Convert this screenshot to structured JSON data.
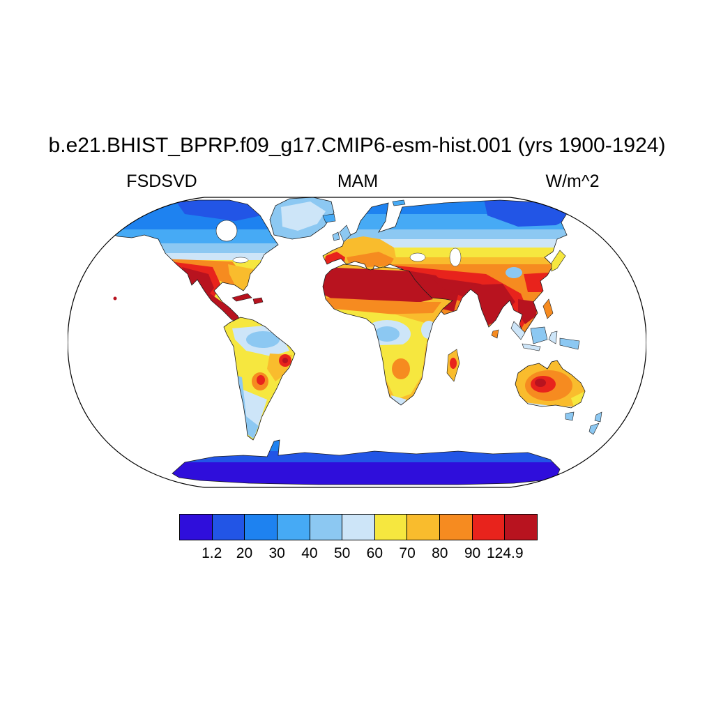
{
  "chart_data": {
    "type": "heatmap",
    "title": "b.e21.BHIST_BPRP.f09_g17.CMIP6-esm-hist.001 (yrs 1900-1924)",
    "variable": "FSDSVD",
    "season": "MAM",
    "units": "W/m^2",
    "projection": "Robinson global map with coastlines",
    "value_min": 1.2,
    "value_max": 124.9,
    "colorbar": {
      "levels": [
        1.2,
        20,
        30,
        40,
        50,
        60,
        70,
        80,
        90,
        124.9
      ],
      "tick_labels": [
        "1.2",
        "20",
        "30",
        "40",
        "50",
        "60",
        "70",
        "80",
        "90",
        "124.9"
      ],
      "colors": [
        "#2f0edb",
        "#2255e6",
        "#1e82f0",
        "#46aaf5",
        "#8cc8f2",
        "#cde5f8",
        "#f6e73f",
        "#f9bc2d",
        "#f68b20",
        "#e8231c",
        "#b8131f"
      ]
    },
    "regions": [
      {
        "region": "Antarctica",
        "value_wm2": "1.2-20"
      },
      {
        "region": "Arctic coast / NE Siberia / Canadian archipelago",
        "value_wm2": "20-30"
      },
      {
        "region": "Siberia / northern Canada / Scandinavia",
        "value_wm2": "30-40"
      },
      {
        "region": "Greenland interior",
        "value_wm2": "40-60"
      },
      {
        "region": "Central Europe",
        "value_wm2": "60-80"
      },
      {
        "region": "Spain / Mediterranean",
        "value_wm2": "80-100"
      },
      {
        "region": "Sahara / Sahel",
        "value_wm2": "100-124.9"
      },
      {
        "region": "Middle East / Arabia / Iran",
        "value_wm2": "100-124.9"
      },
      {
        "region": "India / Indochina",
        "value_wm2": "90-124.9"
      },
      {
        "region": "Sichuan basin (China)",
        "value_wm2": "40-50"
      },
      {
        "region": "Central US",
        "value_wm2": "60-80"
      },
      {
        "region": "SW US / Mexico / Central America",
        "value_wm2": "90-124.9"
      },
      {
        "region": "Amazon basin",
        "value_wm2": "40-60"
      },
      {
        "region": "SE Brazil spot",
        "value_wm2": "90-110"
      },
      {
        "region": "Congo basin",
        "value_wm2": "40-60"
      },
      {
        "region": "Southern Africa",
        "value_wm2": "60-80"
      },
      {
        "region": "Central Australia",
        "value_wm2": "80-110"
      },
      {
        "region": "Patagonia / New Zealand",
        "value_wm2": "40-60"
      }
    ]
  }
}
